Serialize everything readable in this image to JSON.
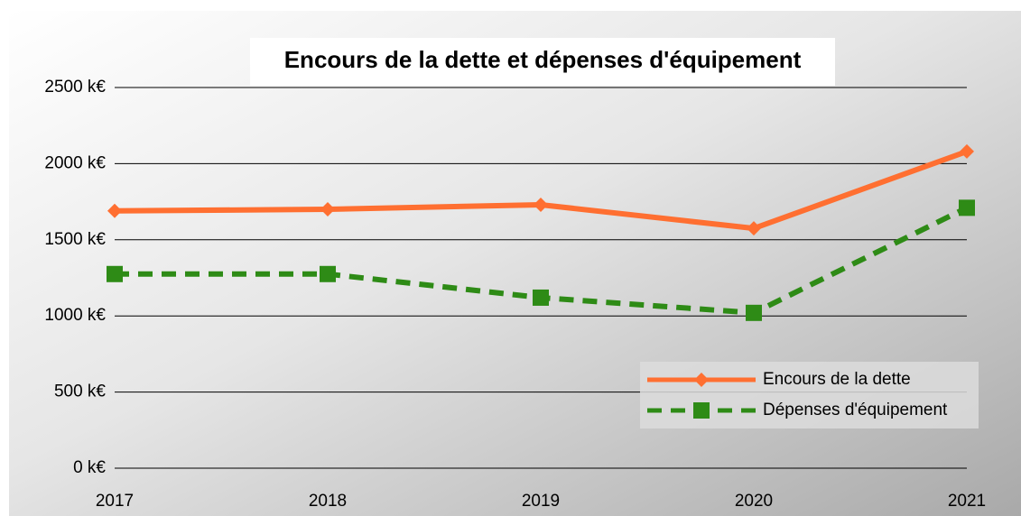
{
  "chart_data": {
    "type": "line",
    "title": "Encours de la dette et dépenses d'équipement",
    "categories": [
      "2017",
      "2018",
      "2019",
      "2020",
      "2021"
    ],
    "series": [
      {
        "name": "Encours de la dette",
        "color": "#ff6f31",
        "dash": false,
        "marker": "diamond",
        "values": [
          1690,
          1700,
          1730,
          1575,
          2080
        ]
      },
      {
        "name": "Dépenses d'équipement",
        "color": "#2e8b16",
        "dash": true,
        "marker": "square",
        "values": [
          1275,
          1275,
          1120,
          1020,
          1710
        ]
      }
    ],
    "ylim": [
      0,
      2500
    ],
    "yticks": [
      {
        "value": 0,
        "label": "0 k€"
      },
      {
        "value": 500,
        "label": "500 k€"
      },
      {
        "value": 1000,
        "label": "1000 k€"
      },
      {
        "value": 1500,
        "label": "1500 k€"
      },
      {
        "value": 2000,
        "label": "2000 k€"
      },
      {
        "value": 2500,
        "label": "2500 k€"
      }
    ],
    "grid": true,
    "legend": "bottom-right"
  }
}
